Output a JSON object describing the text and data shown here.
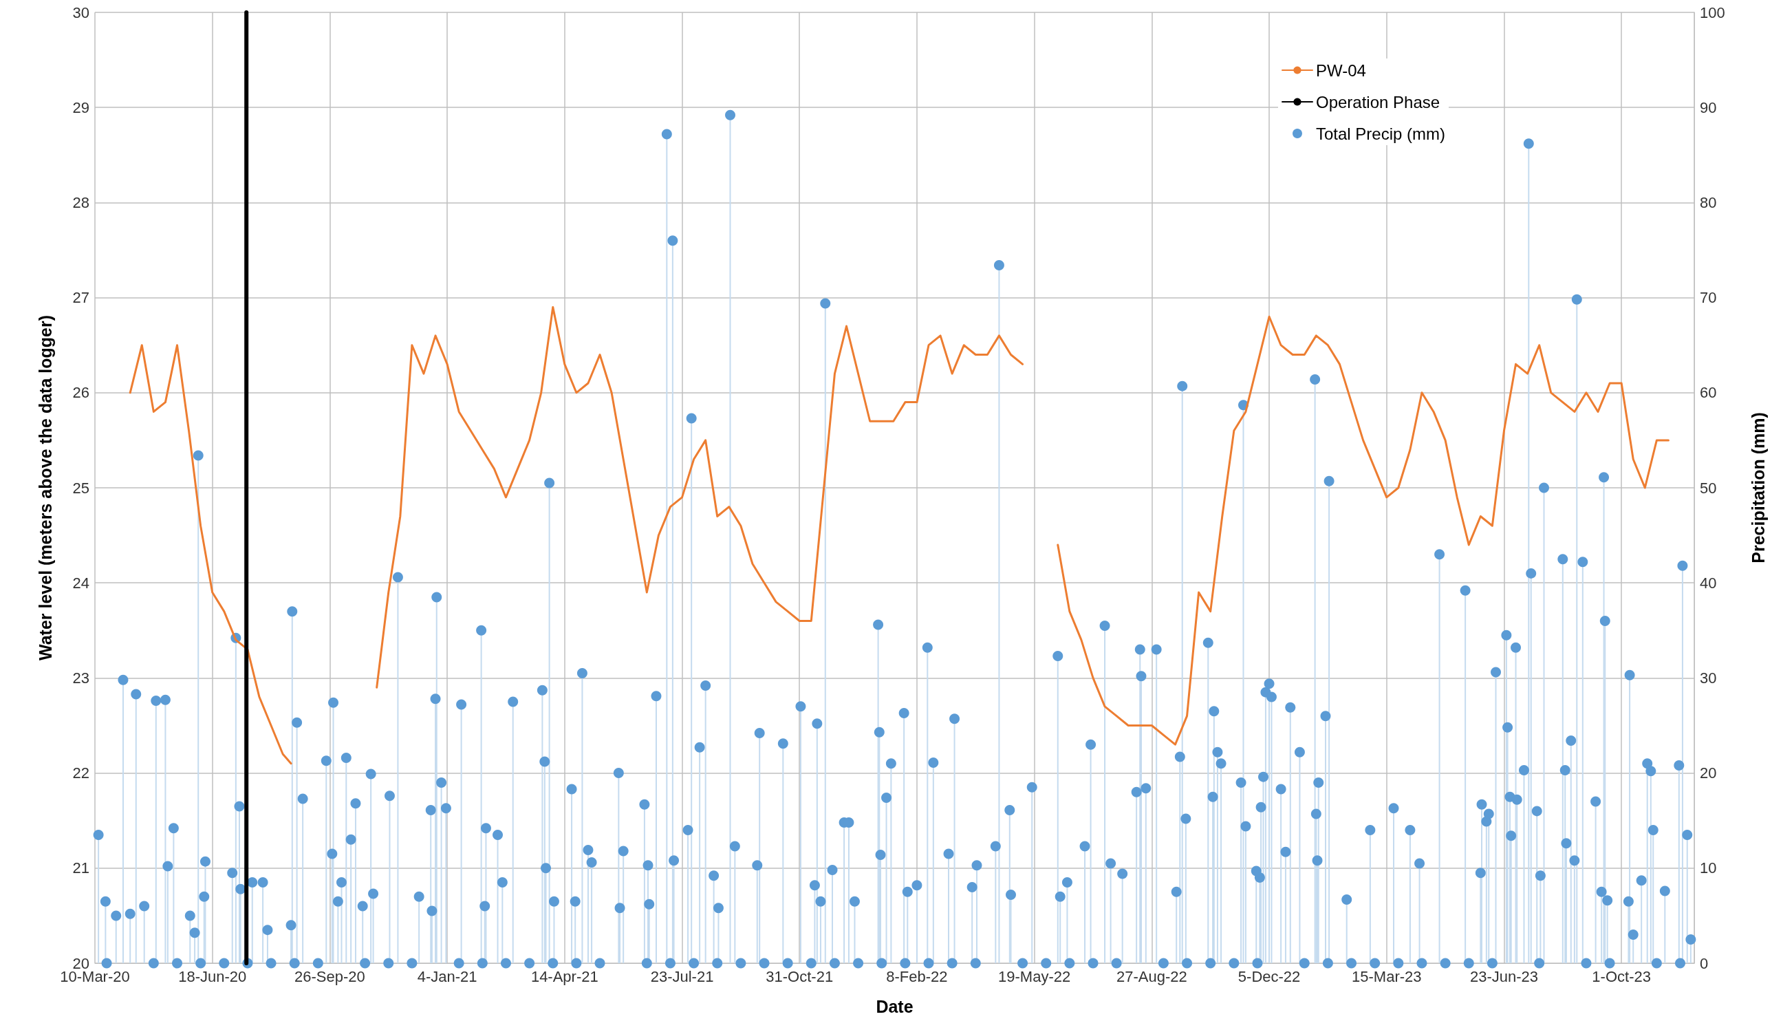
{
  "chart_data": {
    "type": "line",
    "xlabel": "Date",
    "ylabel": "Water level (meters above the data logger)",
    "y2label": "Precipitation (mm)",
    "xlim": [
      "2020-03-10",
      "2023-12-02"
    ],
    "xticks": [
      {
        "value": "2020-03-10",
        "label": "10-Mar-20"
      },
      {
        "value": "2020-06-18",
        "label": "18-Jun-20"
      },
      {
        "value": "2020-09-26",
        "label": "26-Sep-20"
      },
      {
        "value": "2021-01-04",
        "label": "4-Jan-21"
      },
      {
        "value": "2021-04-14",
        "label": "14-Apr-21"
      },
      {
        "value": "2021-07-23",
        "label": "23-Jul-21"
      },
      {
        "value": "2021-10-31",
        "label": "31-Oct-21"
      },
      {
        "value": "2022-02-08",
        "label": "8-Feb-22"
      },
      {
        "value": "2022-05-19",
        "label": "19-May-22"
      },
      {
        "value": "2022-08-27",
        "label": "27-Aug-22"
      },
      {
        "value": "2022-12-05",
        "label": "5-Dec-22"
      },
      {
        "value": "2023-03-15",
        "label": "15-Mar-23"
      },
      {
        "value": "2023-06-23",
        "label": "23-Jun-23"
      },
      {
        "value": "2023-10-01",
        "label": "1-Oct-23"
      }
    ],
    "ylim": [
      20,
      30
    ],
    "yticks": [
      20,
      21,
      22,
      23,
      24,
      25,
      26,
      27,
      28,
      29,
      30
    ],
    "y2lim": [
      0,
      100
    ],
    "y2ticks": [
      0,
      10,
      20,
      30,
      40,
      50,
      60,
      70,
      80,
      90,
      100
    ],
    "grid": true,
    "legend": "top right",
    "series": [
      {
        "name": "PW-04",
        "color": "#ed7d31",
        "x": [
          "2020-04-09",
          "2020-04-19",
          "2020-04-29",
          "2020-05-09",
          "2020-05-19",
          "2020-05-29",
          "2020-06-08",
          "2020-06-18",
          "2020-06-28",
          "2020-07-08",
          "2020-07-18",
          "2020-07-28",
          "2020-08-07",
          "2020-08-17",
          "2020-08-24",
          "2020-09-26",
          "2020-11-05",
          "2020-11-15",
          "2020-11-25",
          "2020-12-05",
          "2020-12-15",
          "2020-12-25",
          "2021-01-04",
          "2021-01-14",
          "2021-01-24",
          "2021-02-03",
          "2021-02-13",
          "2021-02-23",
          "2021-03-05",
          "2021-03-15",
          "2021-03-25",
          "2021-04-04",
          "2021-04-14",
          "2021-04-24",
          "2021-05-04",
          "2021-05-14",
          "2021-05-24",
          "2021-06-03",
          "2021-06-13",
          "2021-06-23",
          "2021-07-03",
          "2021-07-13",
          "2021-07-23",
          "2021-08-02",
          "2021-08-12",
          "2021-08-22",
          "2021-09-01",
          "2021-09-11",
          "2021-09-21",
          "2021-10-01",
          "2021-10-11",
          "2021-10-21",
          "2021-10-31",
          "2021-11-10",
          "2021-11-20",
          "2021-11-30",
          "2021-12-10",
          "2021-12-20",
          "2021-12-30",
          "2022-01-09",
          "2022-01-19",
          "2022-01-29",
          "2022-02-08",
          "2022-02-18",
          "2022-02-28",
          "2022-03-10",
          "2022-03-20",
          "2022-03-30",
          "2022-04-09",
          "2022-04-19",
          "2022-04-29",
          "2022-05-09",
          "2022-05-29",
          "2022-06-08",
          "2022-06-18",
          "2022-06-28",
          "2022-07-08",
          "2022-07-18",
          "2022-07-28",
          "2022-08-07",
          "2022-08-17",
          "2022-08-27",
          "2022-09-06",
          "2022-09-16",
          "2022-09-26",
          "2022-10-06",
          "2022-10-16",
          "2022-10-26",
          "2022-11-05",
          "2022-11-15",
          "2022-11-25",
          "2022-12-05",
          "2022-12-15",
          "2022-12-25",
          "2023-01-04",
          "2023-01-14",
          "2023-01-24",
          "2023-02-03",
          "2023-02-13",
          "2023-02-23",
          "2023-03-05",
          "2023-03-15",
          "2023-03-25",
          "2023-04-04",
          "2023-04-14",
          "2023-04-24",
          "2023-05-04",
          "2023-05-14",
          "2023-05-24",
          "2023-06-03",
          "2023-06-13",
          "2023-06-23",
          "2023-07-03",
          "2023-07-13",
          "2023-07-23",
          "2023-08-02",
          "2023-08-12",
          "2023-08-22",
          "2023-09-01",
          "2023-09-11",
          "2023-09-21",
          "2023-10-01",
          "2023-10-11",
          "2023-10-21",
          "2023-10-31",
          "2023-11-10"
        ],
        "values": [
          26.0,
          26.5,
          25.8,
          25.9,
          26.5,
          25.6,
          24.6,
          23.9,
          23.7,
          23.4,
          23.3,
          22.8,
          22.5,
          22.2,
          22.1,
          null,
          22.9,
          23.9,
          24.7,
          26.5,
          26.2,
          26.6,
          26.3,
          25.8,
          25.6,
          25.4,
          25.2,
          24.9,
          25.2,
          25.5,
          26.0,
          26.9,
          26.3,
          26.0,
          26.1,
          26.4,
          26.0,
          25.3,
          24.6,
          23.9,
          24.5,
          24.8,
          24.9,
          25.3,
          25.5,
          24.7,
          24.8,
          24.6,
          24.2,
          24.0,
          23.8,
          23.7,
          23.6,
          23.6,
          24.9,
          26.2,
          26.7,
          26.2,
          25.7,
          25.7,
          25.7,
          25.9,
          25.9,
          26.5,
          26.6,
          26.2,
          26.5,
          26.4,
          26.4,
          26.6,
          26.4,
          26.3,
          null,
          24.4,
          23.7,
          23.4,
          23.0,
          22.7,
          22.6,
          22.5,
          22.5,
          22.5,
          22.4,
          22.3,
          22.6,
          23.9,
          23.7,
          24.7,
          25.6,
          25.8,
          26.3,
          26.8,
          26.5,
          26.4,
          26.4,
          26.6,
          26.5,
          26.3,
          25.9,
          25.5,
          25.2,
          24.9,
          25.0,
          25.4,
          26.0,
          25.8,
          25.5,
          24.9,
          24.4,
          24.7,
          24.6,
          25.6,
          26.3,
          26.2,
          26.5,
          26.0,
          25.9,
          25.8,
          26.0,
          25.8,
          26.1,
          26.1,
          25.3,
          25.0,
          25.5,
          25.5
        ]
      },
      {
        "name": "Operation Phase",
        "color": "#000000",
        "x": [
          "2020-07-17",
          "2020-07-17"
        ],
        "values": [
          20,
          30
        ]
      },
      {
        "name": "Total Precip (mm)",
        "type": "lollipop",
        "axis": "y2",
        "marker": "circle",
        "color": "#5b9bd5",
        "x": [
          "2020-03-13",
          "2020-03-19",
          "2020-03-28",
          "2020-04-03",
          "2020-04-09",
          "2020-04-14",
          "2020-04-21",
          "2020-05-01",
          "2020-05-09",
          "2020-05-11",
          "2020-05-16",
          "2020-05-30",
          "2020-06-03",
          "2020-06-06",
          "2020-06-12",
          "2020-06-11",
          "2020-07-05",
          "2020-07-08",
          "2020-07-11",
          "2020-07-12",
          "2020-07-22",
          "2020-07-31",
          "2020-08-04",
          "2020-08-24",
          "2020-08-25",
          "2020-08-29",
          "2020-09-03",
          "2020-09-23",
          "2020-09-28",
          "2020-09-29",
          "2020-10-03",
          "2020-10-06",
          "2020-10-10",
          "2020-10-14",
          "2020-10-18",
          "2020-10-24",
          "2020-10-31",
          "2020-11-02",
          "2020-11-16",
          "2020-11-23",
          "2020-12-11",
          "2020-12-21",
          "2020-12-22",
          "2020-12-25",
          "2020-12-26",
          "2020-12-30",
          "2021-01-03",
          "2021-01-16",
          "2021-02-02",
          "2021-02-05",
          "2021-02-06",
          "2021-02-16",
          "2021-02-20",
          "2021-03-01",
          "2021-03-26",
          "2021-03-28",
          "2021-03-29",
          "2021-04-01",
          "2021-04-05",
          "2021-04-20",
          "2021-04-23",
          "2021-04-29",
          "2021-05-04",
          "2021-05-07",
          "2021-05-30",
          "2021-05-31",
          "2021-06-03",
          "2021-06-21",
          "2021-06-24",
          "2021-06-25",
          "2021-07-01",
          "2021-07-10",
          "2021-07-15",
          "2021-07-16",
          "2021-07-28",
          "2021-07-31",
          "2021-08-07",
          "2021-08-12",
          "2021-08-19",
          "2021-08-23",
          "2021-09-02",
          "2021-09-06",
          "2021-09-25",
          "2021-09-27",
          "2021-10-17",
          "2021-11-01",
          "2021-11-13",
          "2021-11-15",
          "2021-11-18",
          "2021-11-22",
          "2021-11-28",
          "2021-12-08",
          "2021-12-12",
          "2021-12-17",
          "2022-01-06",
          "2022-01-07",
          "2022-01-08",
          "2022-01-13",
          "2022-01-17",
          "2022-01-28",
          "2022-01-31",
          "2022-02-08",
          "2022-02-17",
          "2022-02-22",
          "2022-03-07",
          "2022-03-12",
          "2022-03-27",
          "2022-03-31",
          "2022-04-16",
          "2022-04-19",
          "2022-04-28",
          "2022-04-29",
          "2022-05-17",
          "2022-06-08",
          "2022-06-10",
          "2022-06-16",
          "2022-07-01",
          "2022-07-06",
          "2022-07-18",
          "2022-07-23",
          "2022-08-02",
          "2022-08-14",
          "2022-08-17",
          "2022-08-18",
          "2022-08-22",
          "2022-08-31",
          "2022-09-17",
          "2022-09-20",
          "2022-09-22",
          "2022-09-25",
          "2022-10-14",
          "2022-10-18",
          "2022-10-19",
          "2022-10-22",
          "2022-10-25",
          "2022-11-11",
          "2022-11-13",
          "2022-11-15",
          "2022-11-24",
          "2022-11-27",
          "2022-11-28",
          "2022-11-30",
          "2022-12-02",
          "2022-12-05",
          "2022-12-07",
          "2022-12-15",
          "2022-12-19",
          "2022-12-23",
          "2022-12-31",
          "2023-01-13",
          "2023-01-14",
          "2023-01-15",
          "2023-01-16",
          "2023-01-22",
          "2023-01-25",
          "2023-02-09",
          "2023-03-01",
          "2023-03-21",
          "2023-04-04",
          "2023-04-12",
          "2023-04-29",
          "2023-05-21",
          "2023-06-03",
          "2023-06-04",
          "2023-06-08",
          "2023-06-10",
          "2023-06-16",
          "2023-06-25",
          "2023-06-26",
          "2023-06-28",
          "2023-06-29",
          "2023-07-03",
          "2023-07-04",
          "2023-07-10",
          "2023-07-14",
          "2023-07-16",
          "2023-07-21",
          "2023-07-24",
          "2023-07-27",
          "2023-08-12",
          "2023-08-14",
          "2023-08-15",
          "2023-08-19",
          "2023-08-22",
          "2023-08-24",
          "2023-08-29",
          "2023-09-09",
          "2023-09-14",
          "2023-09-16",
          "2023-09-17",
          "2023-09-19",
          "2023-10-07",
          "2023-10-08",
          "2023-10-11",
          "2023-10-18",
          "2023-10-23",
          "2023-10-26",
          "2023-10-28",
          "2023-11-07",
          "2023-11-19",
          "2023-11-22",
          "2023-11-26",
          "2023-11-29",
          "2020-03-20",
          "2020-04-29",
          "2020-05-19",
          "2020-06-08",
          "2020-06-28",
          "2020-07-18",
          "2020-08-07",
          "2020-08-27",
          "2020-09-16",
          "2020-10-26",
          "2020-11-15",
          "2020-12-05",
          "2021-01-14",
          "2021-02-03",
          "2021-02-23",
          "2021-03-15",
          "2021-04-04",
          "2021-04-24",
          "2021-05-14",
          "2021-06-23",
          "2021-07-13",
          "2021-08-02",
          "2021-08-22",
          "2021-09-11",
          "2021-10-01",
          "2021-10-21",
          "2021-11-10",
          "2021-11-30",
          "2021-12-20",
          "2022-01-09",
          "2022-01-29",
          "2022-02-18",
          "2022-03-10",
          "2022-03-30",
          "2022-05-09",
          "2022-05-29",
          "2022-06-18",
          "2022-07-08",
          "2022-07-28",
          "2022-09-06",
          "2022-09-26",
          "2022-10-16",
          "2022-11-05",
          "2022-11-25",
          "2023-01-04",
          "2023-01-24",
          "2023-02-13",
          "2023-03-05",
          "2023-03-25",
          "2023-04-14",
          "2023-05-04",
          "2023-05-24",
          "2023-06-13",
          "2023-07-23",
          "2023-09-01",
          "2023-09-21",
          "2023-10-31",
          "2023-11-20"
        ],
        "values": [
          13.5,
          6.5,
          5,
          29.8,
          5.2,
          28.3,
          6,
          27.6,
          27.7,
          10.2,
          14.2,
          5,
          3.2,
          53.4,
          10.7,
          7,
          9.5,
          34.2,
          16.5,
          7.8,
          8.5,
          8.5,
          3.5,
          4,
          37,
          25.3,
          17.3,
          21.3,
          11.5,
          27.4,
          6.5,
          8.5,
          21.6,
          13,
          16.8,
          6,
          19.9,
          7.3,
          17.6,
          40.6,
          7,
          16.1,
          5.5,
          27.8,
          38.5,
          19,
          16.3,
          27.2,
          35,
          6,
          14.2,
          13.5,
          8.5,
          27.5,
          28.7,
          21.2,
          10,
          50.5,
          6.5,
          18.3,
          6.5,
          30.5,
          11.9,
          10.6,
          20,
          5.8,
          11.8,
          16.7,
          10.3,
          6.2,
          28.1,
          87.2,
          76,
          10.8,
          14,
          57.3,
          22.7,
          29.2,
          9.2,
          5.8,
          89.2,
          12.3,
          10.3,
          24.2,
          23.1,
          27,
          8.2,
          25.2,
          6.5,
          69.4,
          9.8,
          14.8,
          14.8,
          6.5,
          35.6,
          24.3,
          11.4,
          17.4,
          21,
          26.3,
          7.5,
          8.2,
          33.2,
          21.1,
          11.5,
          25.7,
          8,
          10.3,
          12.3,
          73.4,
          16.1,
          7.2,
          18.5,
          32.3,
          7,
          8.5,
          12.3,
          23,
          35.5,
          10.5,
          9.4,
          18,
          33,
          30.2,
          18.4,
          33,
          7.5,
          21.7,
          60.7,
          15.2,
          33.7,
          17.5,
          26.5,
          22.2,
          21,
          19,
          58.7,
          14.4,
          9.7,
          9,
          16.4,
          19.6,
          28.5,
          29.4,
          28,
          18.3,
          11.7,
          26.9,
          22.2,
          61.4,
          15.7,
          10.8,
          19,
          26,
          50.7,
          6.7,
          14,
          16.3,
          14,
          10.5,
          43,
          39.2,
          9.5,
          16.7,
          14.9,
          15.7,
          30.6,
          34.5,
          24.8,
          17.5,
          13.4,
          33.2,
          17.2,
          20.3,
          86.2,
          41,
          16,
          9.2,
          50,
          42.5,
          20.3,
          12.6,
          23.4,
          10.8,
          69.8,
          42.2,
          17,
          7.5,
          51.1,
          36,
          6.6,
          6.5,
          30.3,
          3,
          8.7,
          21,
          20.2,
          14,
          7.6,
          20.8,
          41.8,
          13.5,
          2.5,
          0,
          0,
          0,
          0,
          0,
          0,
          0,
          0,
          0,
          0,
          0,
          0,
          0,
          0,
          0,
          0,
          0,
          0,
          0,
          0,
          0,
          0,
          0,
          0,
          0,
          0,
          0,
          0,
          0,
          0,
          0,
          0,
          0,
          0,
          0,
          0,
          0,
          0,
          0,
          0,
          0,
          0,
          0,
          0,
          0,
          0,
          0,
          0,
          0,
          0,
          0,
          0,
          0,
          0,
          0,
          0,
          0,
          0
        ]
      }
    ]
  }
}
